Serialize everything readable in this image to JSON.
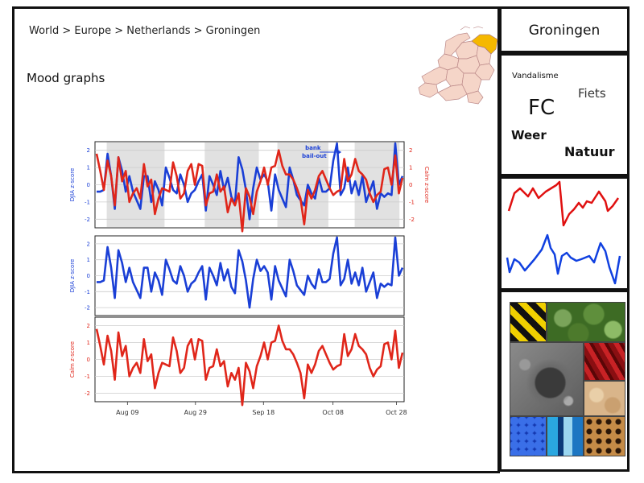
{
  "breadcrumb": "World > Europe > Netherlands > Groningen",
  "page_title": "Mood graphs",
  "map": {
    "highlight_color": "#f5b800",
    "province_color": "#f5d5c8"
  },
  "sidebar": {
    "title": "Groningen",
    "tags": [
      "Vandalisme",
      "Fiets",
      "FC",
      "Weer",
      "Natuur"
    ],
    "sparkline_colors": [
      "#e01010",
      "#1040e0"
    ]
  },
  "chart_data": {
    "type": "line",
    "x_tick_labels": [
      "Aug 09",
      "Aug 29",
      "Sep 18",
      "Oct 08",
      "Oct 28"
    ],
    "annotation": "bank bail-out",
    "panels": [
      {
        "left_label": "DJIA z-score",
        "right_label": "Calm z-score",
        "y_ticks": [
          "2",
          "1",
          "0",
          "-1",
          "-2"
        ],
        "series": [
          "djia",
          "calm"
        ],
        "shaded": true
      },
      {
        "left_label": "DJIA z-score",
        "y_ticks": [
          "2",
          "1",
          "0",
          "-1",
          "-2"
        ],
        "series": [
          "djia"
        ]
      },
      {
        "left_label": "Calm z-score",
        "y_ticks": [
          "2",
          "1",
          "0",
          "-1",
          "-2"
        ],
        "series": [
          "calm"
        ]
      }
    ],
    "ylim": [
      -2.5,
      2.5
    ],
    "colors": {
      "djia": "#1a3fd6",
      "calm": "#e0261a"
    },
    "djia": [
      -0.4,
      -0.4,
      -0.3,
      1.8,
      0.5,
      -1.4,
      1.6,
      0.8,
      -0.4,
      0.5,
      -0.4,
      -0.9,
      -1.4,
      0.5,
      0.5,
      -1.0,
      0.2,
      -0.3,
      -1.2,
      1.0,
      0.4,
      -0.3,
      -0.5,
      0.6,
      0.0,
      -1.0,
      -0.5,
      -0.3,
      0.2,
      0.6,
      -1.5,
      0.5,
      0.0,
      -0.6,
      0.8,
      -0.3,
      0.4,
      -0.7,
      -1.1,
      1.6,
      0.9,
      -0.3,
      -2.0,
      -0.2,
      1.0,
      0.3,
      0.6,
      0.2,
      -1.5,
      0.6,
      -0.3,
      -0.8,
      -1.3,
      1.0,
      0.3,
      -0.6,
      -0.9,
      -1.2,
      0.0,
      -0.5,
      -0.8,
      0.4,
      -0.4,
      -0.4,
      -0.2,
      1.4,
      2.4,
      -0.6,
      -0.2,
      1.0,
      -0.5,
      0.2,
      -0.6,
      0.5,
      -1.0,
      -0.4,
      0.2,
      -1.4,
      -0.5,
      -0.7,
      -0.5,
      -0.6,
      2.4,
      0.0,
      0.5
    ],
    "calm": [
      1.8,
      0.8,
      -0.3,
      1.4,
      0.5,
      -1.2,
      1.6,
      0.2,
      0.8,
      -1.0,
      -0.5,
      -0.2,
      -0.8,
      1.2,
      -0.1,
      0.3,
      -1.7,
      -0.8,
      -0.2,
      -0.3,
      -0.4,
      1.3,
      0.5,
      -0.8,
      -0.5,
      0.8,
      1.2,
      0.0,
      1.2,
      1.1,
      -1.2,
      -0.5,
      -0.4,
      0.6,
      -0.4,
      -0.1,
      -1.6,
      -0.8,
      -1.2,
      -0.5,
      -2.7,
      -0.2,
      -0.7,
      -1.7,
      -0.4,
      0.2,
      1.0,
      0.0,
      1.0,
      1.1,
      2.0,
      1.1,
      0.6,
      0.6,
      0.3,
      -0.2,
      -0.8,
      -2.3,
      -0.3,
      -0.8,
      -0.3,
      0.5,
      0.8,
      0.3,
      -0.2,
      -0.6,
      -0.4,
      -0.3,
      1.5,
      0.2,
      0.6,
      1.5,
      0.8,
      0.6,
      0.3,
      -0.5,
      -1.0,
      -0.6,
      -0.4,
      0.9,
      1.0,
      0.0,
      1.7,
      -0.5,
      0.4
    ]
  }
}
